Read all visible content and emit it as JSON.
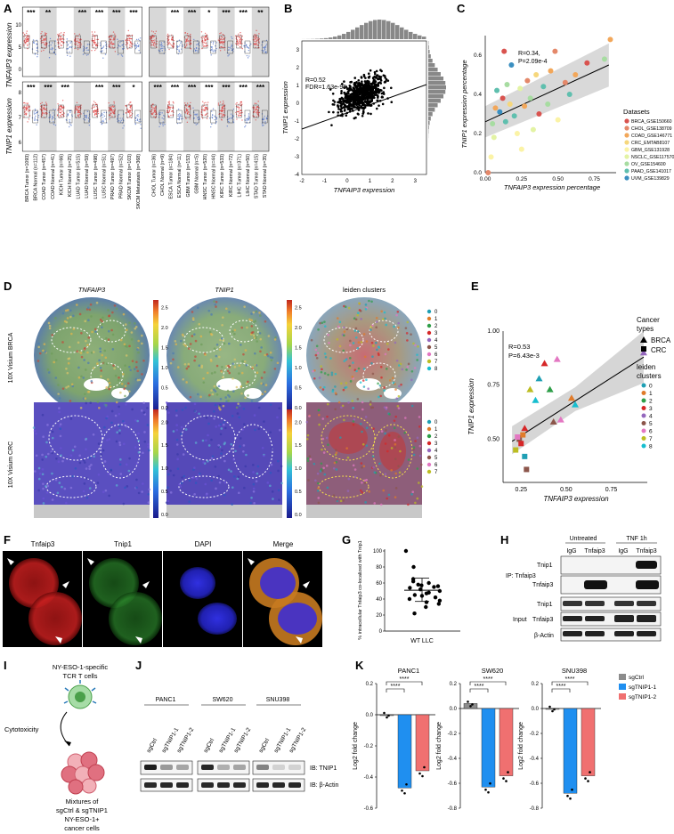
{
  "panels": {
    "A": {
      "label": "A",
      "ylabel_top": "TNFAIP3 expression",
      "ylabel_bottom": "TNIP1 expression",
      "sig_top": [
        "***",
        "**",
        "",
        "***",
        "***",
        "***",
        "***",
        "***",
        "",
        "***",
        "***",
        "*",
        "***",
        "***",
        "**",
        "***"
      ],
      "sig_bottom": [
        "***",
        "***",
        "***",
        "",
        "***",
        "***",
        "*",
        "",
        "***",
        "***",
        "***",
        "***",
        "***",
        "***",
        "***",
        "**"
      ],
      "categories": [
        "BRCA Tumor (n=1093)",
        "BRCA Normal (n=112)",
        "COAD Tumor (n=457)",
        "COAD Normal (n=41)",
        "KICH Tumor (n=66)",
        "KICH Normal (n=25)",
        "LUAD Tumor (n=515)",
        "LUAD Normal (n=59)",
        "LUSC Tumor (n=498)",
        "LUSC Normal (n=51)",
        "PRAD Tumor (n=497)",
        "PRAD Normal (n=52)",
        "SKCM Tumor (n=103)",
        "SKCM Metastasis (n=368)",
        "CHOL Tumor (n=36)",
        "CHOL Normal (n=9)",
        "ESCA Tumor (n=184)",
        "ESCA Normal (n=11)",
        "GBM Tumor (n=153)",
        "GBM Normal (n=5)",
        "HNSC Tumor (n=520)",
        "HNSC Normal (n=44)",
        "KIRC Tumor (n=533)",
        "KIRC Normal (n=72)",
        "LIHC Tumor (n=371)",
        "LIHC Normal (n=50)",
        "STAD Tumor (n=415)",
        "STAD Normal (n=35)"
      ],
      "yticks_top": [
        "0",
        "5",
        "10"
      ],
      "yticks_bottom": [
        "6",
        "7",
        "8"
      ]
    },
    "B": {
      "label": "B",
      "stat1": "R=0.52",
      "stat2": "FDR=1.63e-95",
      "xlabel": "TNFAIP3 expression",
      "ylabel": "TNIP1 expression",
      "xticks": [
        "-2",
        "-1",
        "0",
        "1",
        "2",
        "3"
      ],
      "yticks": [
        "-4",
        "-3",
        "-2",
        "-1",
        "0",
        "1",
        "2",
        "3"
      ]
    },
    "C": {
      "label": "C",
      "stat1": "R=0.34,",
      "stat2": "P=2.09e-4",
      "xlabel": "TNFAIP3 expression percentage",
      "ylabel": "TNIP1 expression percentage",
      "xticks": [
        "0.00",
        "0.25",
        "0.50",
        "0.75"
      ],
      "yticks": [
        "0.0",
        "0.2",
        "0.4",
        "0.6"
      ],
      "legend_title": "Datasets",
      "legend": [
        {
          "name": "BRCA_GSE150660",
          "color": "#d9534f"
        },
        {
          "name": "CHOL_GSE138709",
          "color": "#e4886a"
        },
        {
          "name": "COAD_GSE146771",
          "color": "#f2a75a"
        },
        {
          "name": "CRC_EMTAB8107",
          "color": "#f6d77c"
        },
        {
          "name": "GBM_GSE131928",
          "color": "#fbf3a6"
        },
        {
          "name": "NSCLC_GSE117570",
          "color": "#e3f3a4"
        },
        {
          "name": "OV_GSE154600",
          "color": "#a7dca1"
        },
        {
          "name": "PAAD_GSE141017",
          "color": "#5fbfae"
        },
        {
          "name": "UVM_GSE139829",
          "color": "#3b8fc0"
        }
      ]
    },
    "D": {
      "label": "D",
      "col1": "TNFAIP3",
      "col2": "TNIP1",
      "col3": "leiden clusters",
      "row1": "10X Visium BRCA",
      "row2": "10X Visium CRC",
      "cbar1": [
        "0.0",
        "0.5",
        "1.0",
        "1.5",
        "2.0",
        "2.5"
      ],
      "cbar2": [
        "0.0",
        "0.5",
        "1.0",
        "1.5",
        "2.0"
      ],
      "clusters1": [
        "0",
        "1",
        "2",
        "3",
        "4",
        "5",
        "6",
        "7",
        "8"
      ],
      "clusters2": [
        "0",
        "1",
        "2",
        "3",
        "4",
        "5",
        "6",
        "7"
      ],
      "cluster_colors": [
        "#1f9fb4",
        "#e07b2a",
        "#2e9e48",
        "#d62728",
        "#9467bd",
        "#8c564b",
        "#e377c2",
        "#bcbd22",
        "#17becf"
      ]
    },
    "E": {
      "label": "E",
      "stat1": "R=0.53",
      "stat2": "P=6.43e-3",
      "xlabel": "TNFAIP3 expression",
      "ylabel": "TNIP1 expression",
      "xticks": [
        "0.25",
        "0.50",
        "0.75"
      ],
      "yticks": [
        "0.50",
        "0.75",
        "1.00"
      ],
      "legend_title1": "Cancer",
      "legend_title1b": "types",
      "type1": "BRCA",
      "type2": "CRC",
      "legend_title2": "leiden",
      "legend_title2b": "clusters",
      "clusters": [
        "0",
        "1",
        "2",
        "3",
        "4",
        "5",
        "6",
        "7",
        "8"
      ]
    },
    "F": {
      "label": "F",
      "ch1": "Tnfaip3",
      "ch2": "Tnip1",
      "ch3": "DAPI",
      "ch4": "Merge"
    },
    "G": {
      "label": "G",
      "ylabel": "% intracellular Tnfaip3 co-localized with Tnip1",
      "xlabel": "WT LLC",
      "yticks": [
        "0",
        "20",
        "40",
        "60",
        "80",
        "100"
      ]
    },
    "H": {
      "label": "H",
      "untreated": "Untreated",
      "tnf": "TNF 1h",
      "lane1": "IgG",
      "lane2": "Tnfaip3",
      "lane3": "IgG",
      "lane4": "Tnfaip3",
      "ip": "IP: Tnfaip3",
      "input": "Input",
      "row1": "Tnip1",
      "row2": "Tnfaip3",
      "row3": "Tnip1",
      "row4": "Tnfaip3",
      "row5": "β-Actin"
    },
    "I": {
      "label": "I",
      "tcells1": "NY-ESO-1-specific",
      "tcells2": "TCR T cells",
      "cyto": "Cytotoxicity",
      "mix1": "Mixtures of",
      "mix2": "sgCtrl & sgTNIP1",
      "mix3": "NY-ESO-1+",
      "mix4": "cancer cells"
    },
    "J": {
      "label": "J",
      "lines": [
        "PANC1",
        "SW620",
        "SNU398"
      ],
      "lanes": [
        "sgCtrl",
        "sgTNIP1-1",
        "sgTNIP1-2"
      ],
      "ib1": "IB: TNIP1",
      "ib2": "IB: β-Actin"
    },
    "K": {
      "label": "K",
      "titles": [
        "PANC1",
        "SW620",
        "SNU398"
      ],
      "ylabel": "Log2 fold change",
      "sig": "****",
      "legend": [
        {
          "name": "sgCtrl",
          "color": "#8c8c8c"
        },
        {
          "name": "sgTNIP1-1",
          "color": "#1f8ff0"
        },
        {
          "name": "sgTNIP1-2",
          "color": "#f07070"
        }
      ],
      "yticks1": [
        "0.2",
        "0.0",
        "-0.2",
        "-0.4",
        "-0.6"
      ],
      "yticks2": [
        "0.2",
        "0.0",
        "-0.2",
        "-0.4",
        "-0.6",
        "-0.8"
      ],
      "yticks3": [
        "0.2",
        "0.0",
        "-0.2",
        "-0.4",
        "-0.6",
        "-0.8"
      ]
    }
  },
  "chart_data": [
    {
      "type": "bar",
      "panel": "K-PANC1",
      "categories": [
        "sgCtrl",
        "sgTNIP1-1",
        "sgTNIP1-2"
      ],
      "values": [
        0.0,
        -0.47,
        -0.36
      ],
      "ylim": [
        -0.6,
        0.2
      ],
      "title": "PANC1",
      "ylabel": "Log2 fold change"
    },
    {
      "type": "bar",
      "panel": "K-SW620",
      "categories": [
        "sgCtrl",
        "sgTNIP1-1",
        "sgTNIP1-2"
      ],
      "values": [
        0.04,
        -0.63,
        -0.54
      ],
      "ylim": [
        -0.8,
        0.2
      ],
      "title": "SW620",
      "ylabel": "Log2 fold change"
    },
    {
      "type": "bar",
      "panel": "K-SNU398",
      "categories": [
        "sgCtrl",
        "sgTNIP1-1",
        "sgTNIP1-2"
      ],
      "values": [
        0.0,
        -0.68,
        -0.54
      ],
      "ylim": [
        -0.8,
        0.2
      ],
      "title": "SNU398",
      "ylabel": "Log2 fold change"
    },
    {
      "type": "scatter",
      "panel": "G",
      "xlabel": "WT LLC",
      "ylabel": "% intracellular Tnfaip3 co-localized with Tnip1",
      "ylim": [
        0,
        100
      ],
      "values": [
        100,
        80,
        65,
        62,
        60,
        58,
        57,
        56,
        55,
        54,
        52,
        50,
        48,
        47,
        45,
        44,
        42,
        40,
        38,
        36,
        34,
        30,
        22
      ]
    },
    {
      "type": "scatter",
      "panel": "E",
      "xlabel": "TNFAIP3 expression",
      "ylabel": "TNIP1 expression",
      "xlim": [
        0.15,
        0.95
      ],
      "ylim": [
        0.3,
        1.0
      ],
      "points": [
        {
          "x": 0.93,
          "y": 0.9,
          "t": "BRCA",
          "c": 4
        },
        {
          "x": 0.53,
          "y": 0.69,
          "t": "BRCA",
          "c": 1
        },
        {
          "x": 0.55,
          "y": 0.66,
          "t": "BRCA",
          "c": 8
        },
        {
          "x": 0.47,
          "y": 0.59,
          "t": "BRCA",
          "c": 6
        },
        {
          "x": 0.43,
          "y": 0.58,
          "t": "BRCA",
          "c": 5
        },
        {
          "x": 0.41,
          "y": 0.73,
          "t": "BRCA",
          "c": 2
        },
        {
          "x": 0.38,
          "y": 0.85,
          "t": "BRCA",
          "c": 3
        },
        {
          "x": 0.45,
          "y": 0.87,
          "t": "BRCA",
          "c": 6
        },
        {
          "x": 0.35,
          "y": 0.78,
          "t": "BRCA",
          "c": 0
        },
        {
          "x": 0.33,
          "y": 0.68,
          "t": "BRCA",
          "c": 8
        },
        {
          "x": 0.3,
          "y": 0.73,
          "t": "BRCA",
          "c": 7
        },
        {
          "x": 0.27,
          "y": 0.55,
          "t": "BRCA",
          "c": 3
        },
        {
          "x": 0.22,
          "y": 0.45,
          "t": "CRC",
          "c": 7
        },
        {
          "x": 0.24,
          "y": 0.5,
          "t": "CRC",
          "c": 5
        },
        {
          "x": 0.26,
          "y": 0.52,
          "t": "CRC",
          "c": 1
        },
        {
          "x": 0.27,
          "y": 0.42,
          "t": "CRC",
          "c": 0
        },
        {
          "x": 0.28,
          "y": 0.36,
          "t": "CRC",
          "c": 5
        },
        {
          "x": 0.25,
          "y": 0.48,
          "t": "CRC",
          "c": 3
        },
        {
          "x": 0.23,
          "y": 0.51,
          "t": "CRC",
          "c": 6
        }
      ]
    },
    {
      "type": "scatter",
      "panel": "C",
      "xlabel": "TNFAIP3 expression percentage",
      "ylabel": "TNIP1 expression percentage",
      "xlim": [
        0,
        0.9
      ],
      "ylim": [
        0,
        0.7
      ],
      "points": [
        {
          "x": 0.04,
          "y": 0.08,
          "c": 4
        },
        {
          "x": 0.02,
          "y": 0.0,
          "c": 1
        },
        {
          "x": 0.05,
          "y": 0.25,
          "c": 6
        },
        {
          "x": 0.07,
          "y": 0.33,
          "c": 2
        },
        {
          "x": 0.08,
          "y": 0.42,
          "c": 7
        },
        {
          "x": 0.1,
          "y": 0.31,
          "c": 8
        },
        {
          "x": 0.12,
          "y": 0.38,
          "c": 0
        },
        {
          "x": 0.14,
          "y": 0.26,
          "c": 7
        },
        {
          "x": 0.15,
          "y": 0.45,
          "c": 6
        },
        {
          "x": 0.17,
          "y": 0.35,
          "c": 3
        },
        {
          "x": 0.18,
          "y": 0.55,
          "c": 8
        },
        {
          "x": 0.2,
          "y": 0.29,
          "c": 7
        },
        {
          "x": 0.22,
          "y": 0.2,
          "c": 4
        },
        {
          "x": 0.24,
          "y": 0.43,
          "c": 5
        },
        {
          "x": 0.25,
          "y": 0.12,
          "c": 4
        },
        {
          "x": 0.27,
          "y": 0.34,
          "c": 2
        },
        {
          "x": 0.29,
          "y": 0.47,
          "c": 1
        },
        {
          "x": 0.31,
          "y": 0.38,
          "c": 6
        },
        {
          "x": 0.33,
          "y": 0.22,
          "c": 5
        },
        {
          "x": 0.35,
          "y": 0.5,
          "c": 3
        },
        {
          "x": 0.37,
          "y": 0.3,
          "c": 0
        },
        {
          "x": 0.4,
          "y": 0.44,
          "c": 7
        },
        {
          "x": 0.43,
          "y": 0.35,
          "c": 6
        },
        {
          "x": 0.45,
          "y": 0.52,
          "c": 2
        },
        {
          "x": 0.5,
          "y": 0.27,
          "c": 4
        },
        {
          "x": 0.55,
          "y": 0.46,
          "c": 1
        },
        {
          "x": 0.58,
          "y": 0.4,
          "c": 7
        },
        {
          "x": 0.62,
          "y": 0.5,
          "c": 2
        },
        {
          "x": 0.7,
          "y": 0.56,
          "c": 0
        },
        {
          "x": 0.82,
          "y": 0.58,
          "c": 6
        },
        {
          "x": 0.86,
          "y": 0.68,
          "c": 2
        },
        {
          "x": 0.13,
          "y": 0.62,
          "c": 0
        },
        {
          "x": 0.06,
          "y": 0.18,
          "c": 5
        },
        {
          "x": 0.48,
          "y": 0.62,
          "c": 1
        }
      ]
    }
  ]
}
